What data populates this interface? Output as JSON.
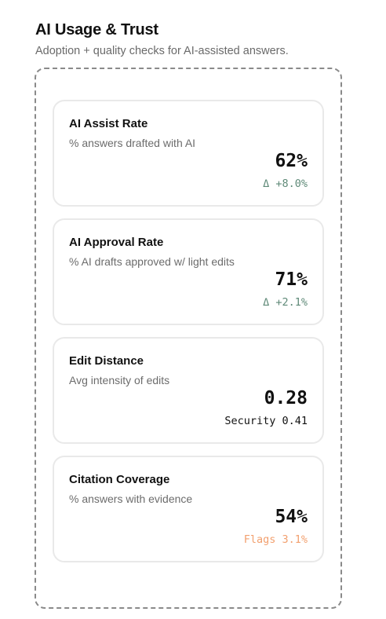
{
  "header": {
    "title": "AI Usage & Trust",
    "subtitle": "Adoption + quality checks for AI-assisted answers."
  },
  "metrics": [
    {
      "title": "AI Assist Rate",
      "description": "% answers drafted with AI",
      "value": "62%",
      "note": "Δ +8.0%",
      "note_tone": "positive",
      "note_color": "#5f8a78"
    },
    {
      "title": "AI Approval Rate",
      "description": "% AI drafts approved w/ light edits",
      "value": "71%",
      "note": "Δ +2.1%",
      "note_tone": "positive",
      "note_color": "#5f8a78"
    },
    {
      "title": "Edit Distance",
      "description": "Avg intensity of edits",
      "value": "0.28",
      "note": "Security 0.41",
      "note_tone": "neutral",
      "note_color": "#111111"
    },
    {
      "title": "Citation Coverage",
      "description": "% answers with evidence",
      "value": "54%",
      "note": "Flags 3.1%",
      "note_tone": "warning",
      "note_color": "#f2a06f"
    }
  ]
}
